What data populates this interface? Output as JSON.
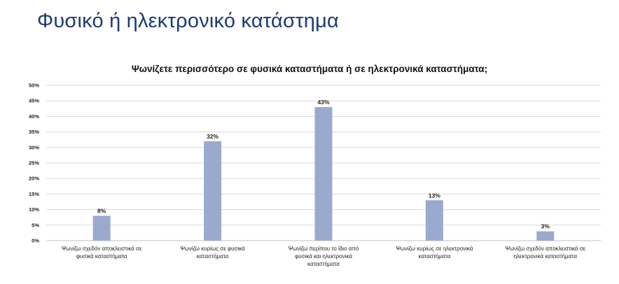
{
  "slide": {
    "title": "Φυσικό ή ηλεκτρονικό κατάστημα"
  },
  "chart_data": {
    "type": "bar",
    "title": "Ψωνίζετε περισσότερο σε φυσικά καταστήματα ή σε ηλεκτρονικά καταστήματα;",
    "categories": [
      [
        "Ψωνίζω σχεδόν αποκλειστικά σε",
        "φυσικά καταστήματα"
      ],
      [
        "Ψωνίζω κυρίως σε φυσικά",
        "καταστήματα"
      ],
      [
        "Ψωνίζω περίπου το ίδιο από",
        "φυσικά και ηλεκτρονικά",
        "καταστήματα"
      ],
      [
        "Ψωνίζω κυρίως σε ηλεκτρονικά",
        "καταστήματα"
      ],
      [
        "Ψωνίζω σχεδόν αποκλειστικά σε",
        "ηλεκτρονικά καταστήματα"
      ]
    ],
    "values": [
      8,
      32,
      43,
      13,
      3
    ],
    "data_labels": [
      "8%",
      "32%",
      "43%",
      "13%",
      "3%"
    ],
    "ylim": [
      0,
      50
    ],
    "y_ticks": [
      0,
      5,
      10,
      15,
      20,
      25,
      30,
      35,
      40,
      45,
      50
    ],
    "y_tick_labels": [
      "0%",
      "5%",
      "10%",
      "15%",
      "20%",
      "25%",
      "30%",
      "35%",
      "40%",
      "45%",
      "50%"
    ],
    "xlabel": "",
    "ylabel": "",
    "grid": true,
    "legend": "none",
    "colors": {
      "bar": "#9aaace",
      "grid": "#d9d9d9",
      "title": "#1f3b73"
    }
  }
}
